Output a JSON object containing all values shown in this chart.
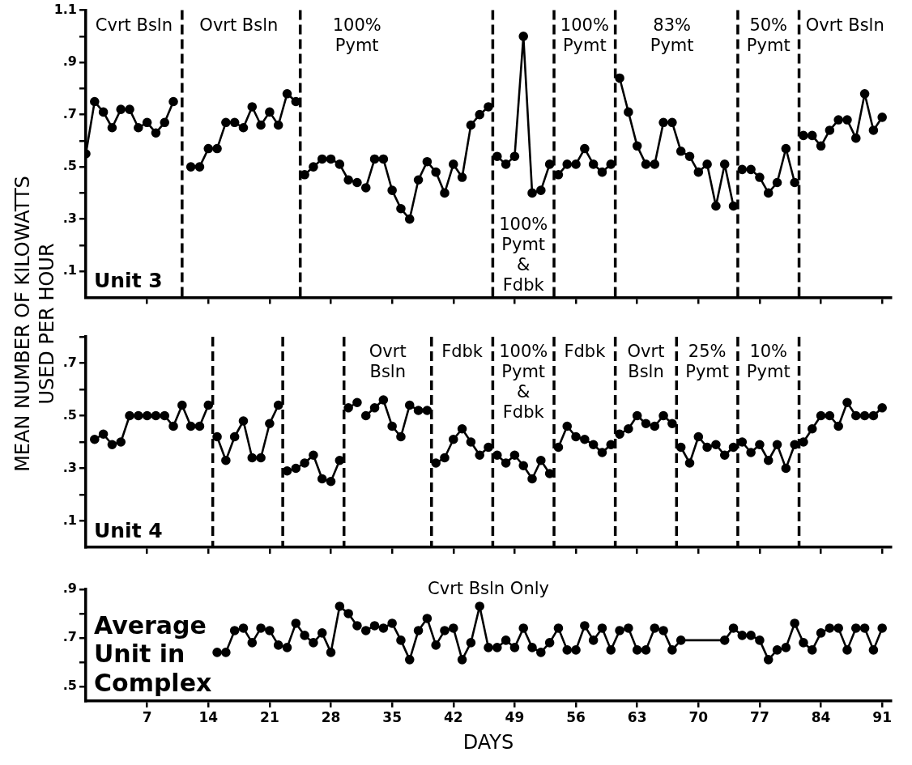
{
  "chart_data": [
    {
      "type": "line",
      "title": "Unit 3",
      "xlim": [
        0,
        92
      ],
      "xticks": [
        7,
        14,
        21,
        28,
        35,
        42,
        49,
        56,
        63,
        70,
        77,
        84,
        91
      ],
      "ylim": [
        0,
        1.1
      ],
      "yticks": [
        {
          "value": 0.1,
          "label": ".1"
        },
        {
          "value": 0.2,
          "label": null
        },
        {
          "value": 0.3,
          "label": ".3"
        },
        {
          "value": 0.4,
          "label": null
        },
        {
          "value": 0.5,
          "label": ".5"
        },
        {
          "value": 0.6,
          "label": null
        },
        {
          "value": 0.7,
          "label": ".7"
        },
        {
          "value": 0.8,
          "label": null
        },
        {
          "value": 0.9,
          "label": ".9"
        },
        {
          "value": 1.0,
          "label": null
        },
        1.1
      ],
      "tick_labels": "y",
      "marker": "circle",
      "series": [
        {
          "color": "#000000",
          "x": [
            0,
            1,
            2,
            3,
            4,
            5,
            6,
            7,
            8,
            9,
            10
          ],
          "values": [
            0.55,
            0.75,
            0.71,
            0.65,
            0.72,
            0.72,
            0.65,
            0.67,
            0.63,
            0.67,
            0.75
          ]
        },
        {
          "color": "#000000",
          "x": [
            12,
            13,
            14,
            15,
            16,
            17,
            18,
            19,
            20,
            21,
            22,
            23,
            24
          ],
          "values": [
            0.5,
            0.5,
            0.57,
            0.57,
            0.67,
            0.67,
            0.65,
            0.73,
            0.66,
            0.71,
            0.66,
            0.78,
            0.75
          ]
        },
        {
          "color": "#000000",
          "x": [
            25,
            26,
            27,
            28,
            29,
            30,
            31
          ],
          "values": [
            0.47,
            0.5,
            0.53,
            0.53,
            0.51,
            0.45,
            0.44
          ]
        },
        {
          "color": "#000000",
          "x": [
            32,
            33,
            34,
            35,
            36,
            37,
            38,
            39,
            40,
            41,
            42,
            43,
            44,
            45,
            46
          ],
          "values": [
            0.42,
            0.53,
            0.53,
            0.41,
            0.34,
            0.3,
            0.45,
            0.52,
            0.48,
            0.4,
            0.51,
            0.46,
            0.66,
            0.7,
            0.73
          ]
        },
        {
          "color": "#000000",
          "x": [
            47,
            48,
            49,
            50,
            51,
            52,
            53
          ],
          "values": [
            0.54,
            0.51,
            0.54,
            1.0,
            0.4,
            0.41,
            0.51
          ]
        },
        {
          "color": "#000000",
          "x": [
            54,
            55,
            56,
            57,
            58,
            59,
            60
          ],
          "values": [
            0.47,
            0.51,
            0.51,
            0.57,
            0.51,
            0.48,
            0.51
          ]
        },
        {
          "color": "#000000",
          "x": [
            61,
            62,
            63,
            64,
            65,
            66,
            67,
            68,
            69,
            70,
            71,
            72,
            73,
            74
          ],
          "values": [
            0.84,
            0.71,
            0.58,
            0.51,
            0.51,
            0.67,
            0.67,
            0.56,
            0.54,
            0.48,
            0.51,
            0.35,
            0.51,
            0.35
          ]
        },
        {
          "color": "#000000",
          "x": [
            75,
            76,
            77,
            78,
            79,
            80,
            81
          ],
          "values": [
            0.49,
            0.49,
            0.46,
            0.4,
            0.44,
            0.57,
            0.44
          ]
        },
        {
          "color": "#000000",
          "x": [
            82,
            83,
            84,
            85,
            86,
            87,
            88,
            89,
            90,
            91
          ],
          "values": [
            0.62,
            0.62,
            0.58,
            0.64,
            0.68,
            0.68,
            0.61,
            0.78,
            0.64,
            0.69
          ]
        }
      ],
      "ref_lines": [
        {
          "axis": "x",
          "value": 11,
          "line_style": "dashed",
          "label": "Ovrt Bsln"
        },
        {
          "axis": "x",
          "value": 24.5,
          "line_style": "dashed",
          "label": "100%\nPymt"
        },
        {
          "axis": "x",
          "value": 46.5,
          "line_style": "dashed",
          "label": "100%\nPymt\n&\nFdbk"
        },
        {
          "axis": "x",
          "value": 53.5,
          "line_style": "dashed",
          "label": "100%\nPymt"
        },
        {
          "axis": "x",
          "value": 60.5,
          "line_style": "dashed",
          "label": "83%\nPymt"
        },
        {
          "axis": "x",
          "value": 74.5,
          "line_style": "dashed",
          "label": "50%\nPymt"
        },
        {
          "axis": "x",
          "value": 81.5,
          "line_style": "dashed",
          "label": "Ovrt Bsln"
        }
      ],
      "annotations": [
        "Cvrt Bsln"
      ]
    },
    {
      "type": "line",
      "title": "Unit 4",
      "ylabel": "MEAN NUMBER OF KILOWATTS\nUSED PER HOUR",
      "xlim": [
        0,
        92
      ],
      "xticks": [
        7,
        14,
        21,
        28,
        35,
        42,
        49,
        56,
        63,
        70,
        77,
        84,
        91
      ],
      "ylim": [
        0,
        0.8
      ],
      "yticks": [
        {
          "value": 0.1,
          "label": ".1"
        },
        {
          "value": 0.2,
          "label": null
        },
        {
          "value": 0.3,
          "label": ".3"
        },
        {
          "value": 0.4,
          "label": null
        },
        {
          "value": 0.5,
          "label": ".5"
        },
        {
          "value": 0.6,
          "label": null
        },
        {
          "value": 0.7,
          "label": ".7"
        },
        {
          "value": 0.8,
          "label": null
        }
      ],
      "tick_labels": "y",
      "marker": "circle",
      "series": [
        {
          "color": "#000000",
          "x": [
            1,
            2,
            3,
            4,
            5,
            6,
            7,
            8,
            9,
            10,
            11,
            12,
            13,
            14
          ],
          "values": [
            0.41,
            0.43,
            0.39,
            0.4,
            0.5,
            0.5,
            0.5,
            0.5,
            0.5,
            0.46,
            0.54,
            0.46,
            0.46,
            0.54
          ]
        },
        {
          "color": "#000000",
          "x": [
            15,
            16,
            17,
            18,
            19,
            20,
            21,
            22
          ],
          "values": [
            0.42,
            0.33,
            0.42,
            0.48,
            0.34,
            0.34,
            0.47,
            0.54
          ]
        },
        {
          "color": "#000000",
          "x": [
            23,
            24,
            25,
            26,
            27,
            28,
            29
          ],
          "values": [
            0.29,
            0.3,
            0.32,
            0.35,
            0.26,
            0.25,
            0.33
          ]
        },
        {
          "color": "#000000",
          "x": [
            30,
            31
          ],
          "values": [
            0.53,
            0.55
          ]
        },
        {
          "color": "#000000",
          "x": [
            32,
            33,
            34,
            35,
            36,
            37,
            38,
            39
          ],
          "values": [
            0.5,
            0.53,
            0.56,
            0.46,
            0.42,
            0.54,
            0.52,
            0.52
          ]
        },
        {
          "color": "#000000",
          "x": [
            40,
            41,
            42,
            43,
            44,
            45,
            46
          ],
          "values": [
            0.32,
            0.34,
            0.41,
            0.45,
            0.4,
            0.35,
            0.38
          ]
        },
        {
          "color": "#000000",
          "x": [
            47,
            48,
            49,
            50,
            51,
            52,
            53
          ],
          "values": [
            0.35,
            0.32,
            0.35,
            0.31,
            0.26,
            0.33,
            0.28
          ]
        },
        {
          "color": "#000000",
          "x": [
            54,
            55,
            56,
            57,
            58,
            59,
            60
          ],
          "values": [
            0.38,
            0.46,
            0.42,
            0.41,
            0.39,
            0.36,
            0.39
          ]
        },
        {
          "color": "#000000",
          "x": [
            61,
            62,
            63,
            64,
            65,
            66,
            67
          ],
          "values": [
            0.43,
            0.45,
            0.5,
            0.47,
            0.46,
            0.5,
            0.47
          ]
        },
        {
          "color": "#000000",
          "x": [
            68,
            69,
            70,
            71,
            72,
            73,
            74
          ],
          "values": [
            0.38,
            0.32,
            0.42,
            0.38,
            0.39,
            0.35,
            0.38
          ]
        },
        {
          "color": "#000000",
          "x": [
            75,
            76,
            77,
            78,
            79,
            80,
            81
          ],
          "values": [
            0.4,
            0.36,
            0.39,
            0.33,
            0.39,
            0.3,
            0.39
          ]
        },
        {
          "color": "#000000",
          "x": [
            82,
            83,
            84,
            85,
            86,
            87,
            88,
            89,
            90,
            91
          ],
          "values": [
            0.4,
            0.45,
            0.5,
            0.5,
            0.46,
            0.55,
            0.5,
            0.5,
            0.5,
            0.53
          ]
        }
      ],
      "ref_lines": [
        {
          "axis": "x",
          "value": 14.5,
          "line_style": "dashed"
        },
        {
          "axis": "x",
          "value": 22.5,
          "line_style": "dashed"
        },
        {
          "axis": "x",
          "value": 29.5,
          "line_style": "dashed",
          "label": "Ovrt\nBsln"
        },
        {
          "axis": "x",
          "value": 39.5,
          "line_style": "dashed",
          "label": "Fdbk"
        },
        {
          "axis": "x",
          "value": 46.5,
          "line_style": "dashed",
          "label": "100%\nPymt\n&\nFdbk"
        },
        {
          "axis": "x",
          "value": 53.5,
          "line_style": "dashed",
          "label": "Fdbk"
        },
        {
          "axis": "x",
          "value": 60.5,
          "line_style": "dashed",
          "label": "Ovrt\nBsln"
        },
        {
          "axis": "x",
          "value": 67.5,
          "line_style": "dashed",
          "label": "25%\nPymt"
        },
        {
          "axis": "x",
          "value": 74.5,
          "line_style": "dashed",
          "label": "10%\nPymt"
        },
        {
          "axis": "x",
          "value": 81.5,
          "line_style": "dashed"
        }
      ]
    },
    {
      "type": "line",
      "title": "Average\nUnit in\nComplex",
      "xlabel": "DAYS",
      "xlim": [
        0,
        92
      ],
      "xticks": [
        7,
        14,
        21,
        28,
        35,
        42,
        49,
        56,
        63,
        70,
        77,
        84,
        91
      ],
      "ylim": [
        0.44,
        0.9
      ],
      "yticks": [
        {
          "value": 0.5,
          "label": ".5"
        },
        {
          "value": 0.6,
          "label": null
        },
        {
          "value": 0.7,
          "label": ".7"
        },
        {
          "value": 0.8,
          "label": null
        },
        {
          "value": 0.9,
          "label": ".9"
        }
      ],
      "marker": "circle",
      "series": [
        {
          "color": "#000000",
          "x": [
            15,
            16,
            17,
            18,
            19,
            20,
            21,
            22,
            23,
            24,
            25,
            26,
            27,
            28,
            29,
            30,
            31
          ],
          "values": [
            0.64,
            0.64,
            0.73,
            0.74,
            0.68,
            0.74,
            0.73,
            0.67,
            0.66,
            0.76,
            0.71,
            0.68,
            0.72,
            0.64,
            0.83,
            0.8,
            0.75
          ]
        },
        {
          "color": "#000000",
          "x": [
            32,
            33,
            34,
            35,
            36,
            37,
            38,
            39,
            40,
            41,
            42,
            43,
            44,
            45,
            46,
            47,
            48,
            49,
            50,
            51,
            52,
            53,
            54,
            55,
            56,
            57,
            58,
            59,
            60,
            61,
            62,
            63,
            64,
            65,
            66,
            67,
            68,
            73,
            74,
            75,
            76,
            77,
            78,
            79,
            80,
            81,
            82,
            83,
            84,
            85,
            86,
            87,
            88,
            89,
            90,
            91
          ],
          "values": [
            0.73,
            0.75,
            0.74,
            0.76,
            0.69,
            0.61,
            0.73,
            0.78,
            0.67,
            0.73,
            0.74,
            0.61,
            0.68,
            0.83,
            0.66,
            0.66,
            0.69,
            0.66,
            0.74,
            0.66,
            0.64,
            0.68,
            0.74,
            0.65,
            0.65,
            0.75,
            0.69,
            0.74,
            0.65,
            0.73,
            0.74,
            0.65,
            0.65,
            0.74,
            0.73,
            0.65,
            0.69,
            0.69,
            0.74,
            0.71,
            0.71,
            0.69,
            0.61,
            0.65,
            0.66,
            0.76,
            0.68,
            0.65,
            0.72,
            0.74,
            0.74,
            0.65,
            0.74,
            0.74,
            0.65,
            0.74
          ]
        }
      ],
      "annotations": [
        "Cvrt Bsln Only"
      ]
    }
  ]
}
